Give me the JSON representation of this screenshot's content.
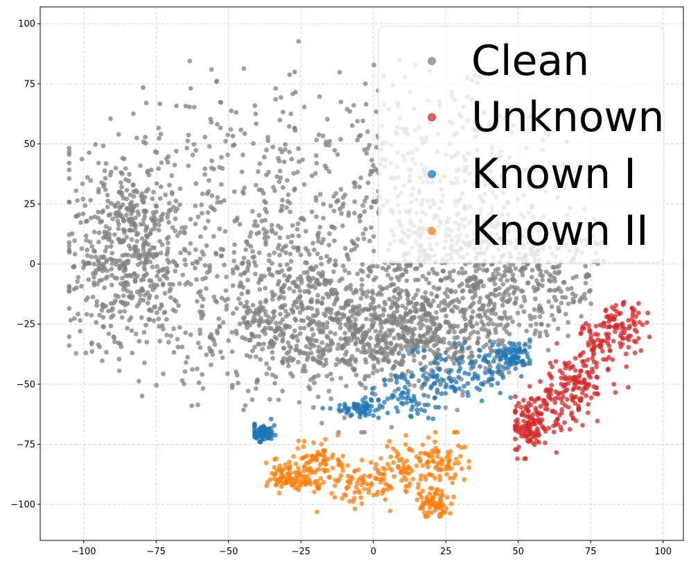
{
  "chart_data": {
    "type": "scatter",
    "title": "",
    "xlabel": "",
    "ylabel": "",
    "xlim": [
      -115,
      107
    ],
    "ylim": [
      -115,
      107
    ],
    "xticks": [
      -100,
      -75,
      -50,
      -25,
      0,
      25,
      50,
      75,
      100
    ],
    "yticks": [
      -100,
      -75,
      -50,
      -25,
      0,
      25,
      50,
      75,
      100
    ],
    "xtick_labels": [
      "−100",
      "−75",
      "−50",
      "−25",
      "0",
      "25",
      "50",
      "75",
      "100"
    ],
    "ytick_labels": [
      "−100",
      "−75",
      "−50",
      "−25",
      "0",
      "25",
      "50",
      "75",
      "100"
    ],
    "grid": true,
    "legend_position": "top-right",
    "point_counts": {
      "Clean": 3200,
      "Unknown": 420,
      "Known I": 380,
      "Known II": 460
    },
    "series": [
      {
        "name": "Clean",
        "color": "#808080",
        "regions": [
          {
            "center": [
              -45,
              15
            ],
            "spread": [
              30,
              30
            ]
          },
          {
            "center": [
              -20,
              -25
            ],
            "spread": [
              25,
              15
            ]
          },
          {
            "center": [
              20,
              30
            ],
            "spread": [
              25,
              30
            ]
          },
          {
            "center": [
              45,
              -5
            ],
            "spread": [
              25,
              15
            ]
          },
          {
            "center": [
              -85,
              5
            ],
            "spread": [
              10,
              20
            ]
          },
          {
            "center": [
              10,
              -30
            ],
            "spread": [
              20,
              10
            ]
          }
        ],
        "x_range": [
          -105,
          93
        ],
        "y_range": [
          -70,
          100
        ]
      },
      {
        "name": "Unknown",
        "color": "#d62728",
        "regions": [
          {
            "center": [
              53,
              -68
            ],
            "spread": [
              3,
              6
            ]
          },
          {
            "center": [
              62,
              -60
            ],
            "spread": [
              5,
              6
            ]
          },
          {
            "center": [
              70,
              -50
            ],
            "spread": [
              5,
              6
            ]
          },
          {
            "center": [
              78,
              -35
            ],
            "spread": [
              5,
              6
            ]
          },
          {
            "center": [
              86,
              -25
            ],
            "spread": [
              5,
              6
            ]
          }
        ],
        "x_range": [
          49,
          97
        ],
        "y_range": [
          -81,
          -13
        ]
      },
      {
        "name": "Known I",
        "color": "#1f77b4",
        "regions": [
          {
            "center": [
              -5,
              -60
            ],
            "spread": [
              4,
              2
            ]
          },
          {
            "center": [
              10,
              -55
            ],
            "spread": [
              6,
              6
            ]
          },
          {
            "center": [
              25,
              -48
            ],
            "spread": [
              6,
              6
            ]
          },
          {
            "center": [
              38,
              -45
            ],
            "spread": [
              5,
              6
            ]
          },
          {
            "center": [
              48,
              -38
            ],
            "spread": [
              3,
              3
            ]
          },
          {
            "center": [
              -38,
              -70
            ],
            "spread": [
              2,
              2
            ]
          }
        ],
        "x_range": [
          -41,
          54
        ],
        "y_range": [
          -74,
          -24
        ]
      },
      {
        "name": "Known II",
        "color": "#ff7f0e",
        "regions": [
          {
            "center": [
              -28,
              -88
            ],
            "spread": [
              5,
              3
            ]
          },
          {
            "center": [
              -18,
              -82
            ],
            "spread": [
              4,
              5
            ]
          },
          {
            "center": [
              -5,
              -92
            ],
            "spread": [
              5,
              4
            ]
          },
          {
            "center": [
              10,
              -85
            ],
            "spread": [
              6,
              5
            ]
          },
          {
            "center": [
              23,
              -82
            ],
            "spread": [
              5,
              5
            ]
          },
          {
            "center": [
              21,
              -100
            ],
            "spread": [
              3,
              3
            ]
          }
        ],
        "x_range": [
          -37,
          33
        ],
        "y_range": [
          -105,
          -70
        ]
      }
    ]
  }
}
